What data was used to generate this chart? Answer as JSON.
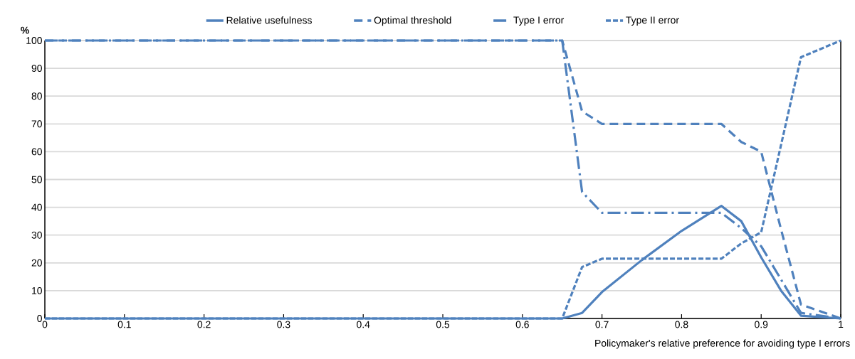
{
  "chart_data": {
    "type": "line",
    "ylabel": "%",
    "xlabel": "Policymaker's relative preference for avoiding type I errors",
    "xlim": [
      0,
      1
    ],
    "ylim": [
      0,
      100
    ],
    "xticks": [
      0,
      {
        "value": 0.1,
        "label": "0.1"
      },
      {
        "value": 0.2,
        "label": "0.2"
      },
      {
        "value": 0.3,
        "label": "0.3"
      },
      {
        "value": 0.4,
        "label": "0.4"
      },
      {
        "value": 0.5,
        "label": "0.5"
      },
      {
        "value": 0.6,
        "label": "0.6"
      },
      {
        "value": 0.7,
        "label": "0.7"
      },
      {
        "value": 0.8,
        "label": "0.8"
      },
      {
        "value": 0.9,
        "label": "0.9"
      },
      1
    ],
    "yticks": [
      0,
      10,
      20,
      30,
      40,
      50,
      60,
      70,
      80,
      90,
      100
    ],
    "grid": "y",
    "legend": "top",
    "marker": "none",
    "series": [
      {
        "name": "Relative usefulness",
        "color": "#4f81bd",
        "line_style": "solid",
        "x": [
          0,
          0.65,
          0.675,
          0.7,
          0.75,
          0.8,
          0.85,
          0.875,
          0.9,
          0.925,
          0.95,
          1
        ],
        "values": [
          0,
          0,
          2,
          9.5,
          21,
          31.5,
          40.5,
          35,
          22,
          10,
          1,
          0
        ]
      },
      {
        "name": "Optimal threshold",
        "color": "#4f81bd",
        "line_style": "dashed",
        "x": [
          0,
          0.65,
          0.675,
          0.7,
          0.85,
          0.875,
          0.9,
          0.925,
          0.95,
          1
        ],
        "values": [
          100,
          100,
          74.5,
          70,
          70,
          63.5,
          60,
          32,
          5,
          0
        ]
      },
      {
        "name": "Type I error",
        "color": "#4f81bd",
        "line_style": "dashdot",
        "x": [
          0,
          0.65,
          0.675,
          0.7,
          0.85,
          0.875,
          0.9,
          0.925,
          0.95,
          1
        ],
        "values": [
          100,
          100,
          45.5,
          38,
          38,
          32.5,
          26,
          14,
          2,
          0
        ]
      },
      {
        "name": "Type II error",
        "color": "#4f81bd",
        "line_style": "dotted",
        "x": [
          0,
          0.65,
          0.675,
          0.7,
          0.85,
          0.875,
          0.9,
          0.95,
          1
        ],
        "values": [
          0,
          0,
          18.5,
          21.5,
          21.5,
          27,
          31,
          94,
          100
        ]
      }
    ]
  }
}
